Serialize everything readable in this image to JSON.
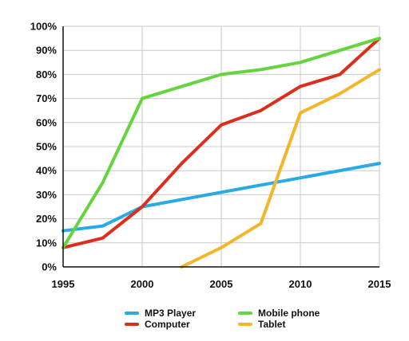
{
  "chart_data": {
    "type": "line",
    "title": "",
    "xlabel": "",
    "ylabel": "",
    "xlim": [
      1995,
      2015
    ],
    "ylim": [
      0,
      100
    ],
    "x_ticks": [
      "1995",
      "2000",
      "2005",
      "2010",
      "2015"
    ],
    "y_ticks": [
      "0%",
      "10%",
      "20%",
      "30%",
      "40%",
      "50%",
      "60%",
      "70%",
      "80%",
      "90%",
      "100%"
    ],
    "grid": true,
    "legend_position": "bottom",
    "series": [
      {
        "name": "MP3 Player",
        "color": "#29a9e6",
        "points": [
          [
            1995,
            15
          ],
          [
            1997.5,
            17
          ],
          [
            2000,
            25
          ],
          [
            2015,
            43
          ]
        ]
      },
      {
        "name": "Computer",
        "color": "#dd2d1d",
        "points": [
          [
            1995,
            8
          ],
          [
            1997.5,
            12
          ],
          [
            2000,
            25
          ],
          [
            2002.5,
            43
          ],
          [
            2005,
            59
          ],
          [
            2007.5,
            65
          ],
          [
            2010,
            75
          ],
          [
            2012.5,
            80
          ],
          [
            2015,
            95
          ]
        ]
      },
      {
        "name": "Mobile phone",
        "color": "#66d43f",
        "points": [
          [
            1995,
            8
          ],
          [
            1997.5,
            35
          ],
          [
            2000,
            70
          ],
          [
            2005,
            80
          ],
          [
            2007.5,
            82
          ],
          [
            2010,
            85
          ],
          [
            2012.5,
            90
          ],
          [
            2015,
            95
          ]
        ]
      },
      {
        "name": "Tablet",
        "color": "#f3b62a",
        "points": [
          [
            2002.5,
            0
          ],
          [
            2005,
            8
          ],
          [
            2007.5,
            18
          ],
          [
            2010,
            64
          ],
          [
            2012.5,
            72
          ],
          [
            2015,
            82
          ]
        ]
      }
    ]
  }
}
